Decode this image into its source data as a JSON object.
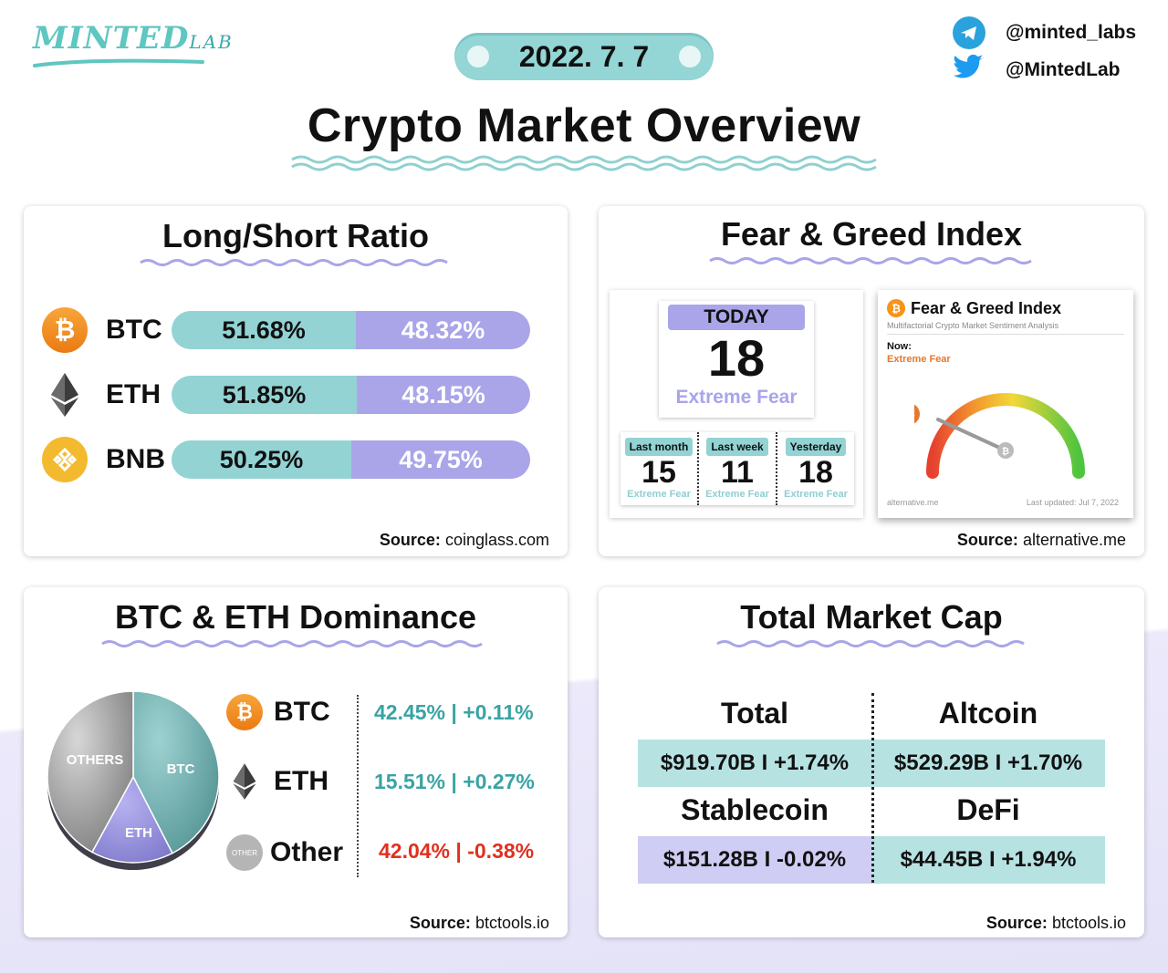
{
  "brand": {
    "logo_main": "MINTED",
    "logo_sub": "LAB"
  },
  "header": {
    "date": "2022. 7. 7",
    "title": "Crypto Market Overview",
    "telegram": "@minted_labs",
    "twitter": "@MintedLab"
  },
  "colors": {
    "teal": "#93d3d4",
    "purple": "#a9a5e8",
    "positive": "#3aa3a3",
    "negative": "#e0301e"
  },
  "long_short": {
    "title": "Long/Short Ratio",
    "rows": [
      {
        "coin": "BTC",
        "long": "51.68%",
        "short": "48.32%",
        "long_fraction": 0.5168
      },
      {
        "coin": "ETH",
        "long": "51.85%",
        "short": "48.15%",
        "long_fraction": 0.5185
      },
      {
        "coin": "BNB",
        "long": "50.25%",
        "short": "49.75%",
        "long_fraction": 0.5025
      }
    ],
    "source_label": "Source:",
    "source_value": "coinglass.com"
  },
  "fear_greed": {
    "title": "Fear & Greed Index",
    "today": {
      "label": "TODAY",
      "value": "18",
      "classification": "Extreme Fear"
    },
    "history": [
      {
        "label": "Last month",
        "value": "15",
        "classification": "Extreme Fear"
      },
      {
        "label": "Last week",
        "value": "11",
        "classification": "Extreme Fear"
      },
      {
        "label": "Yesterday",
        "value": "18",
        "classification": "Extreme Fear"
      }
    ],
    "widget": {
      "title": "Fear & Greed Index",
      "subtitle": "Multifactorial Crypto Market Sentiment Analysis",
      "now_label": "Now:",
      "now_value": "Extreme Fear",
      "gauge_value": "18",
      "gauge_fraction": 0.18,
      "footer_left": "alternative.me",
      "footer_right": "Last updated: Jul 7, 2022"
    },
    "source_label": "Source:",
    "source_value": "alternative.me"
  },
  "dominance": {
    "title": "BTC & ETH Dominance",
    "pie_labels": {
      "btc": "BTC",
      "eth": "ETH",
      "others": "OTHERS"
    },
    "other_icon_text": "OTHER",
    "rows": [
      {
        "coin": "BTC",
        "value": "42.45% | +0.11%",
        "share": 42.45
      },
      {
        "coin": "ETH",
        "value": "15.51% | +0.27%",
        "share": 15.51
      },
      {
        "coin": "Other",
        "value": "42.04% | -0.38%",
        "share": 42.04
      }
    ],
    "source_label": "Source:",
    "source_value": "btctools.io"
  },
  "market_cap": {
    "title": "Total Market Cap",
    "cells": [
      {
        "label": "Total",
        "value": "$919.70B I +1.74%"
      },
      {
        "label": "Altcoin",
        "value": "$529.29B I +1.70%"
      },
      {
        "label": "Stablecoin",
        "value": "$151.28B I -0.02%"
      },
      {
        "label": "DeFi",
        "value": "$44.45B I +1.94%"
      }
    ],
    "source_label": "Source:",
    "source_value": "btctools.io"
  }
}
